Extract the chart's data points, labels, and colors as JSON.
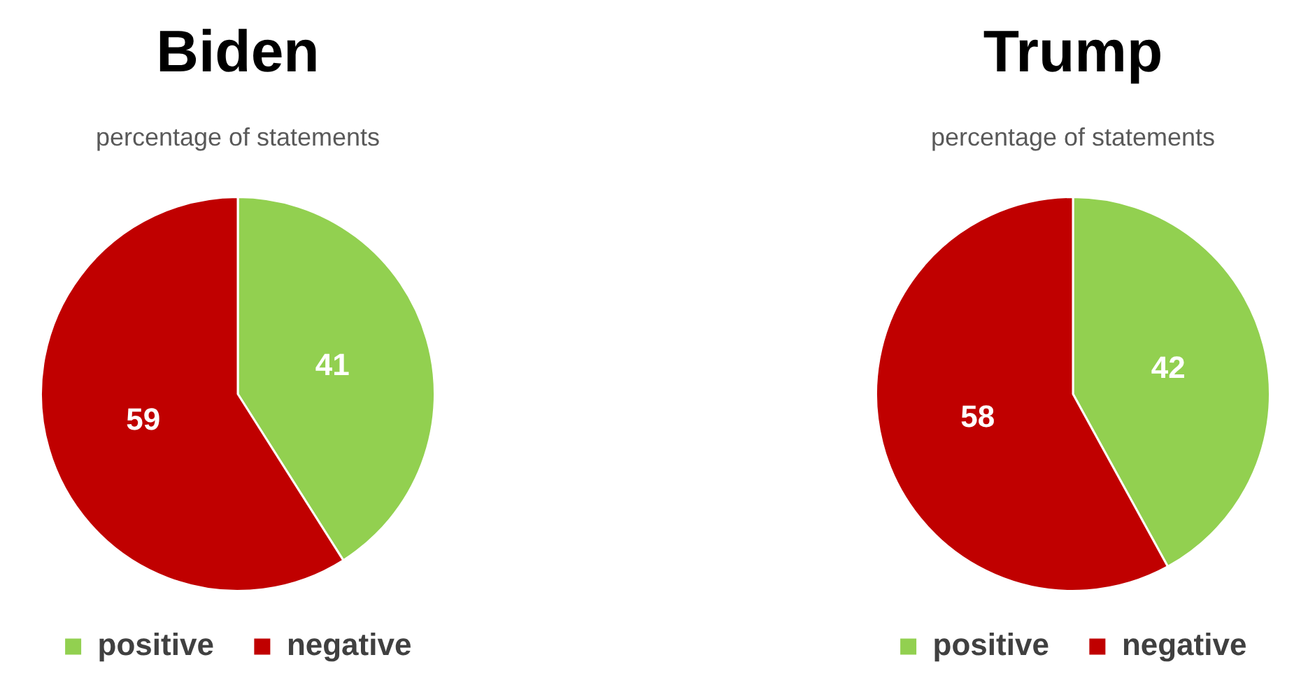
{
  "chart_data": [
    {
      "type": "pie",
      "title": "Biden",
      "subtitle": "percentage of statements",
      "categories": [
        "positive",
        "negative"
      ],
      "values": [
        41,
        59
      ],
      "colors": [
        "#92d050",
        "#c00000"
      ],
      "data_labels": true,
      "legend": "bottom"
    },
    {
      "type": "pie",
      "title": "Trump",
      "subtitle": "percentage of statements",
      "categories": [
        "positive",
        "negative"
      ],
      "values": [
        42,
        58
      ],
      "colors": [
        "#92d050",
        "#c00000"
      ],
      "data_labels": true,
      "legend": "bottom"
    }
  ]
}
